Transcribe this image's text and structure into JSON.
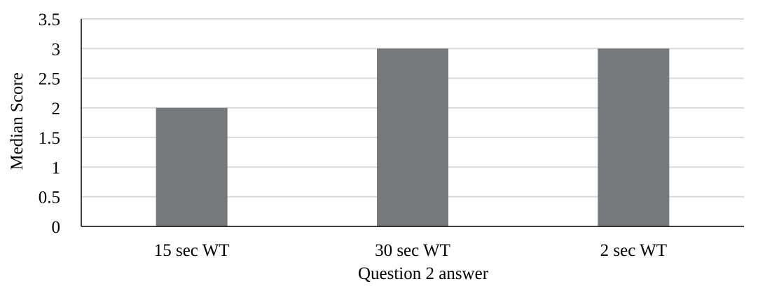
{
  "chart_data": {
    "type": "bar",
    "title": "",
    "categories": [
      "15 sec WT",
      "30 sec WT",
      "2 sec WT"
    ],
    "values": [
      2,
      3,
      3
    ],
    "xlabel": "Question 2 answer",
    "ylabel": "Median Score",
    "ylim": [
      0,
      3.5
    ],
    "yticks": [
      "0",
      "0.5",
      "1",
      "1.5",
      "2",
      "2.5",
      "3",
      "3.5"
    ],
    "grid": true,
    "legend": "none",
    "colors": {
      "bar": "#76797b",
      "grid": "#d9d9d9",
      "axis": "#000000"
    }
  }
}
